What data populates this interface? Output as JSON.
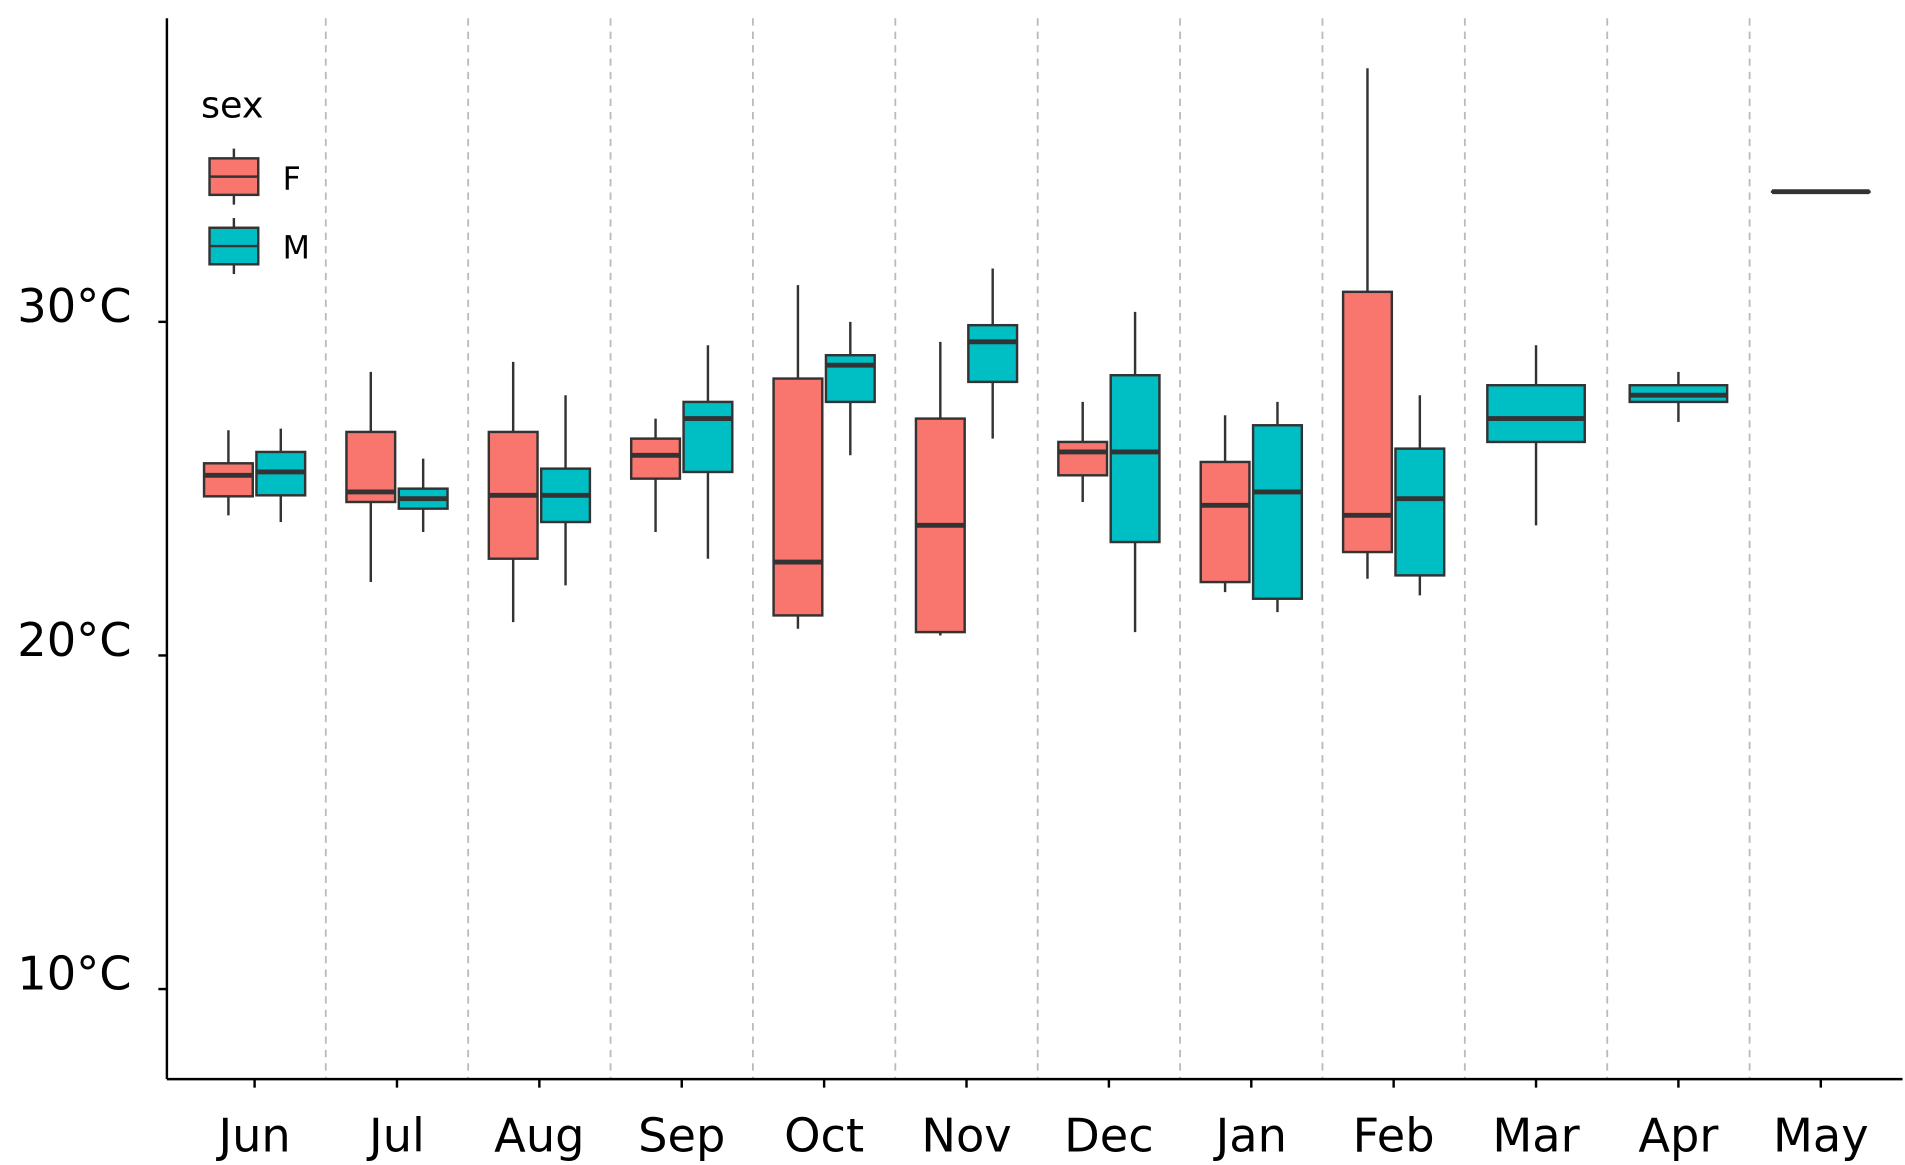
{
  "chart_data": {
    "type": "boxplot",
    "categories": [
      "Jun",
      "Jul",
      "Aug",
      "Sep",
      "Oct",
      "Nov",
      "Dec",
      "Jan",
      "Feb",
      "Mar",
      "Apr",
      "May"
    ],
    "legend_title": "sex",
    "legend_position": "top-left",
    "ylim": [
      7.3,
      39.1
    ],
    "yticks": [
      {
        "value": 10,
        "label": "10°C"
      },
      {
        "value": 20,
        "label": "20°C"
      },
      {
        "value": 30,
        "label": "30°C"
      }
    ],
    "grid": true,
    "series": [
      {
        "name": "F",
        "color": "#f8766d",
        "values": [
          [
            24.2,
            24.77,
            25.4,
            25.76,
            26.75
          ],
          [
            22.2,
            24.6,
            24.9,
            26.7,
            28.5
          ],
          [
            21.0,
            22.9,
            24.8,
            26.7,
            28.8
          ],
          [
            23.7,
            25.3,
            26.0,
            26.5,
            27.1
          ],
          [
            20.8,
            21.2,
            22.8,
            28.3,
            31.1
          ],
          [
            20.6,
            20.7,
            23.9,
            27.1,
            29.4
          ],
          [
            24.6,
            25.4,
            26.1,
            26.4,
            27.6
          ],
          [
            21.9,
            22.2,
            24.5,
            25.8,
            27.2
          ],
          [
            22.3,
            23.1,
            24.2,
            30.9,
            37.6
          ],
          null,
          null,
          null
        ]
      },
      {
        "name": "M",
        "color": "#00bfc4",
        "values": [
          [
            24.0,
            24.8,
            25.5,
            26.1,
            26.8
          ],
          [
            23.7,
            24.4,
            24.7,
            25.0,
            25.9
          ],
          [
            22.1,
            24.0,
            24.8,
            25.6,
            27.8
          ],
          [
            22.9,
            25.5,
            27.1,
            27.6,
            29.3
          ],
          [
            26.0,
            27.6,
            28.7,
            29.0,
            30.0
          ],
          [
            26.5,
            28.2,
            29.4,
            29.9,
            31.6
          ],
          [
            20.7,
            23.4,
            26.1,
            28.4,
            30.3
          ],
          [
            21.3,
            21.7,
            24.9,
            26.9,
            27.6
          ],
          [
            21.8,
            22.4,
            24.7,
            26.2,
            27.8
          ],
          [
            23.9,
            26.4,
            27.1,
            28.1,
            29.3
          ],
          [
            27.0,
            27.6,
            27.8,
            28.1,
            28.5
          ],
          [
            33.9,
            33.9,
            33.9,
            33.9,
            33.9
          ]
        ]
      }
    ]
  }
}
